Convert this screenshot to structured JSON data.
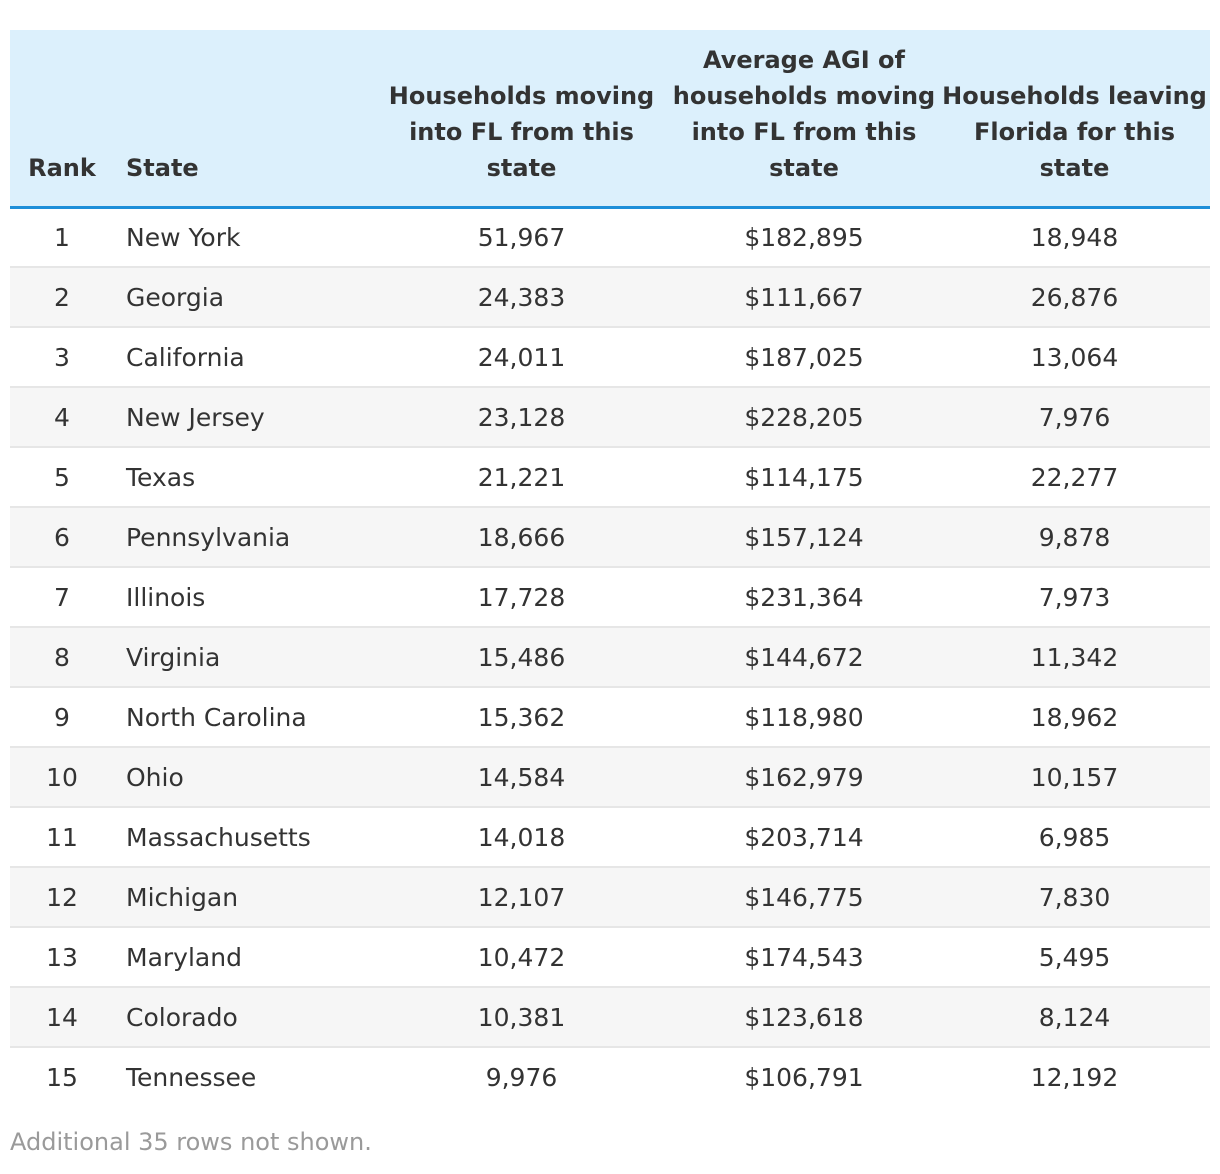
{
  "table": {
    "headers": {
      "rank": "Rank",
      "state": "State",
      "moving_in": "Households moving into FL from this state",
      "avg_agi": "Average AGI of households moving into FL from this state",
      "leaving": "Households leaving Florida for this state"
    },
    "rows": [
      {
        "rank": "1",
        "state": "New York",
        "moving_in": "51,967",
        "avg_agi": "$182,895",
        "leaving": "18,948"
      },
      {
        "rank": "2",
        "state": "Georgia",
        "moving_in": "24,383",
        "avg_agi": "$111,667",
        "leaving": "26,876"
      },
      {
        "rank": "3",
        "state": "California",
        "moving_in": "24,011",
        "avg_agi": "$187,025",
        "leaving": "13,064"
      },
      {
        "rank": "4",
        "state": "New Jersey",
        "moving_in": "23,128",
        "avg_agi": "$228,205",
        "leaving": "7,976"
      },
      {
        "rank": "5",
        "state": "Texas",
        "moving_in": "21,221",
        "avg_agi": "$114,175",
        "leaving": "22,277"
      },
      {
        "rank": "6",
        "state": "Pennsylvania",
        "moving_in": "18,666",
        "avg_agi": "$157,124",
        "leaving": "9,878"
      },
      {
        "rank": "7",
        "state": "Illinois",
        "moving_in": "17,728",
        "avg_agi": "$231,364",
        "leaving": "7,973"
      },
      {
        "rank": "8",
        "state": "Virginia",
        "moving_in": "15,486",
        "avg_agi": "$144,672",
        "leaving": "11,342"
      },
      {
        "rank": "9",
        "state": "North Carolina",
        "moving_in": "15,362",
        "avg_agi": "$118,980",
        "leaving": "18,962"
      },
      {
        "rank": "10",
        "state": "Ohio",
        "moving_in": "14,584",
        "avg_agi": "$162,979",
        "leaving": "10,157"
      },
      {
        "rank": "11",
        "state": "Massachusetts",
        "moving_in": "14,018",
        "avg_agi": "$203,714",
        "leaving": "6,985"
      },
      {
        "rank": "12",
        "state": "Michigan",
        "moving_in": "12,107",
        "avg_agi": "$146,775",
        "leaving": "7,830"
      },
      {
        "rank": "13",
        "state": "Maryland",
        "moving_in": "10,472",
        "avg_agi": "$174,543",
        "leaving": "5,495"
      },
      {
        "rank": "14",
        "state": "Colorado",
        "moving_in": "10,381",
        "avg_agi": "$123,618",
        "leaving": "8,124"
      },
      {
        "rank": "15",
        "state": "Tennessee",
        "moving_in": "9,976",
        "avg_agi": "$106,791",
        "leaving": "12,192"
      }
    ],
    "footnote": "Additional 35 rows not shown."
  },
  "colors": {
    "header_background": "#dcf0fc",
    "header_rule": "#1e8fd9",
    "stripe": "#f6f6f6",
    "text": "#333333",
    "footnote_text": "#9a9a9a"
  }
}
